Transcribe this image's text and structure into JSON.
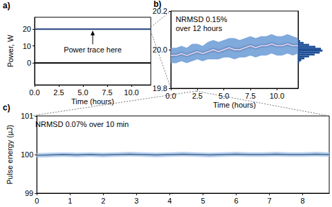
{
  "chart_data": [
    {
      "panel": "a)",
      "type": "line",
      "xlabel": "Time (hours)",
      "ylabel": "Power, W",
      "xlim": [
        0,
        12
      ],
      "xticks": [
        {
          "value": 0,
          "label": "0.0"
        },
        2.5,
        {
          "value": 5,
          "label": "5.0"
        },
        7.5,
        {
          "value": 10,
          "label": "10.0"
        }
      ],
      "ylim": [
        -13,
        27
      ],
      "yticks": [
        0,
        10,
        20
      ],
      "grid": false,
      "annotations": [
        {
          "text": "Power trace here",
          "x": 6,
          "y": 20
        }
      ],
      "x": [
        0,
        3,
        6,
        9,
        12
      ],
      "series": [
        {
          "type": "line",
          "color": "#1f3f7a",
          "values": [
            20,
            20,
            20,
            20,
            20
          ]
        },
        {
          "type": "line",
          "color": "#000000",
          "values": [
            0,
            0,
            0,
            0,
            0
          ]
        }
      ]
    },
    {
      "panel": "b)",
      "type": "line",
      "xlabel": "Time (hours)",
      "xlim": [
        0,
        12
      ],
      "xticks": [
        {
          "value": 0,
          "label": "0.0"
        },
        2.5,
        {
          "value": 5,
          "label": "5.0"
        },
        7.5,
        {
          "value": 10,
          "label": "10.0"
        }
      ],
      "ylim": [
        19.8,
        20.2
      ],
      "yticks": [
        19.8,
        {
          "value": 20,
          "label": "20.0"
        },
        20.2
      ],
      "grid": false,
      "annotations": [
        {
          "text": "NRMSD 0.15%\nover 12 hours"
        }
      ],
      "x": [
        0,
        0.5,
        1,
        1.5,
        2,
        2.5,
        3,
        3.5,
        4,
        4.5,
        5,
        5.5,
        6,
        6.5,
        7,
        7.5,
        8,
        8.5,
        9,
        9.5,
        10,
        10.5,
        11,
        11.5,
        12
      ],
      "series": [
        {
          "type": "band",
          "color": "#6a9ad6",
          "low": [
            19.93,
            19.93,
            19.94,
            19.93,
            19.94,
            19.95,
            19.94,
            19.95,
            19.95,
            19.95,
            19.96,
            19.96,
            19.95,
            19.96,
            19.96,
            19.97,
            19.96,
            19.97,
            19.97,
            19.98,
            19.97,
            19.97,
            19.98,
            19.97,
            19.98
          ],
          "high": [
            20.01,
            20.01,
            20.02,
            20.01,
            20.03,
            20.03,
            20.02,
            20.04,
            20.05,
            20.04,
            20.05,
            20.06,
            20.06,
            20.05,
            20.06,
            20.07,
            20.06,
            20.07,
            20.07,
            20.08,
            20.07,
            20.07,
            20.08,
            20.07,
            20.06
          ]
        },
        {
          "type": "line",
          "color": "#ecd6ec",
          "values": [
            19.97,
            19.97,
            19.98,
            19.97,
            19.98,
            19.99,
            19.98,
            19.99,
            20.0,
            19.99,
            20.0,
            20.01,
            20.0,
            20.0,
            20.01,
            20.02,
            20.01,
            20.02,
            20.02,
            20.03,
            20.02,
            20.02,
            20.03,
            20.02,
            20.02
          ]
        }
      ],
      "histogram": {
        "type": "histogram",
        "color": "#1f4f96",
        "tick_labels": false,
        "xlim": [
          0,
          65
        ],
        "bins": [
          19.93,
          19.94,
          19.95,
          19.96,
          19.97,
          19.98,
          19.99,
          20.0,
          20.01,
          20.02,
          20.03,
          20.04,
          20.05
        ],
        "counts": [
          3,
          8,
          16,
          28,
          42,
          55,
          62,
          58,
          44,
          28,
          14,
          5
        ]
      }
    },
    {
      "panel": "c)",
      "type": "line",
      "ylabel": "Pulse energy (µJ)",
      "xlim": [
        0,
        8.8
      ],
      "xticks": [
        0,
        1,
        2,
        3,
        4,
        5,
        6,
        7,
        8
      ],
      "ylim": [
        99,
        101
      ],
      "yticks": [
        99,
        100,
        101
      ],
      "grid": false,
      "annotations": [
        {
          "text": "NRMSD 0.07% over 10 min"
        }
      ],
      "x": [
        0,
        0.4,
        0.8,
        1.2,
        1.6,
        2,
        2.4,
        2.8,
        3.2,
        3.6,
        4,
        4.4,
        4.8,
        5.2,
        5.6,
        6,
        6.4,
        6.8,
        7.2,
        7.6,
        8,
        8.4,
        8.8
      ],
      "series": [
        {
          "type": "band",
          "color": "#a9c8ea",
          "low": [
            99.92,
            99.93,
            99.94,
            99.93,
            99.94,
            99.93,
            99.94,
            99.95,
            99.94,
            99.93,
            99.94,
            99.95,
            99.94,
            99.93,
            99.94,
            99.95,
            99.94,
            99.94,
            99.95,
            99.94,
            99.94,
            99.95,
            99.94
          ],
          "high": [
            100.04,
            100.05,
            100.06,
            100.05,
            100.06,
            100.05,
            100.06,
            100.07,
            100.06,
            100.05,
            100.06,
            100.07,
            100.06,
            100.05,
            100.06,
            100.07,
            100.06,
            100.06,
            100.07,
            100.06,
            100.06,
            100.07,
            100.06
          ]
        },
        {
          "type": "line",
          "color": "#47648f",
          "values": [
            99.98,
            99.99,
            100.0,
            99.99,
            100.0,
            99.99,
            100.0,
            100.01,
            100.0,
            99.99,
            100.0,
            100.01,
            100.0,
            99.99,
            100.0,
            100.01,
            100.0,
            100.0,
            100.01,
            100.0,
            100.0,
            100.01,
            100.0
          ]
        }
      ]
    }
  ]
}
